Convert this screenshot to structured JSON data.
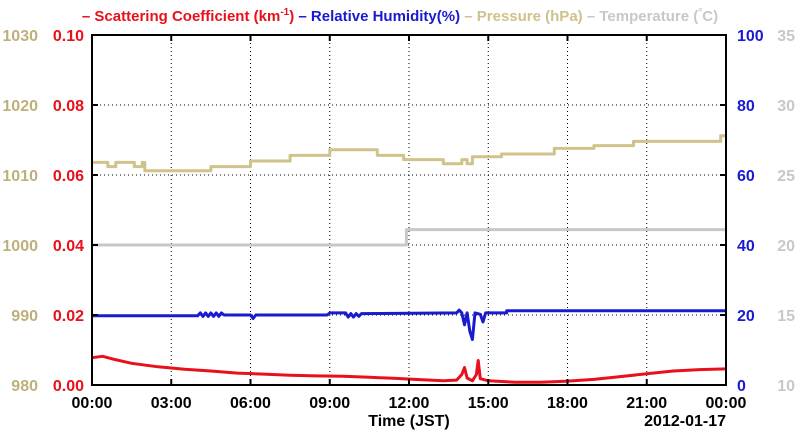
{
  "chart_data": {
    "type": "line",
    "legend": [
      {
        "key": "scatter",
        "prefix": "– ",
        "label": "Scattering Coefficient (km",
        "sup": "-1",
        "suffix": ")",
        "color": "#e8101a"
      },
      {
        "key": "rh",
        "prefix": "– ",
        "label": "Relative Humidity(%)",
        "color": "#1a1ad0"
      },
      {
        "key": "pressure",
        "prefix": "– ",
        "label": "Pressure (hPa)",
        "color": "#cfc28a"
      },
      {
        "key": "temperature",
        "prefix": "– ",
        "label": "Temperature (",
        "sup": "°",
        "suffix": "C)",
        "color": "#c8c8c8"
      }
    ],
    "xlabel": "Time (JST)",
    "date_label": "2012-01-17",
    "x_ticks": [
      "00:00",
      "03:00",
      "06:00",
      "09:00",
      "12:00",
      "15:00",
      "18:00",
      "21:00",
      "00:00"
    ],
    "xlim_hours": [
      0,
      24
    ],
    "axes": {
      "pressure": {
        "ticks": [
          "980",
          "990",
          "1000",
          "1010",
          "1020",
          "1030"
        ],
        "lim": [
          980,
          1030
        ],
        "color": "#bdb07a"
      },
      "scatter": {
        "ticks": [
          "0.00",
          "0.02",
          "0.04",
          "0.06",
          "0.08",
          "0.10"
        ],
        "lim": [
          0,
          0.1
        ],
        "color": "#e8101a"
      },
      "rh": {
        "ticks": [
          "0",
          "20",
          "40",
          "60",
          "80",
          "100"
        ],
        "lim": [
          0,
          100
        ],
        "color": "#1a1ad0"
      },
      "temperature": {
        "ticks": [
          "10",
          "15",
          "20",
          "25",
          "30",
          "35"
        ],
        "lim": [
          10,
          35
        ],
        "color": "#c8c8c8"
      }
    },
    "grid": true,
    "series": [
      {
        "name": "Pressure (hPa)",
        "axis": "pressure",
        "color": "#cfc28a",
        "points": [
          [
            0,
            1011.8
          ],
          [
            0.6,
            1011.8
          ],
          [
            0.6,
            1011.2
          ],
          [
            0.9,
            1011.2
          ],
          [
            0.9,
            1011.8
          ],
          [
            1.6,
            1011.8
          ],
          [
            1.6,
            1011.2
          ],
          [
            1.9,
            1011.2
          ],
          [
            1.9,
            1011.8
          ],
          [
            2.0,
            1011.8
          ],
          [
            2.0,
            1010.6
          ],
          [
            4.5,
            1010.6
          ],
          [
            4.5,
            1011.2
          ],
          [
            6.0,
            1011.2
          ],
          [
            6.0,
            1012.0
          ],
          [
            7.5,
            1012.0
          ],
          [
            7.5,
            1012.8
          ],
          [
            9.0,
            1012.8
          ],
          [
            9.0,
            1013.6
          ],
          [
            10.8,
            1013.6
          ],
          [
            10.8,
            1012.8
          ],
          [
            11.8,
            1012.8
          ],
          [
            11.8,
            1012.2
          ],
          [
            13.3,
            1012.2
          ],
          [
            13.3,
            1011.6
          ],
          [
            14.0,
            1011.6
          ],
          [
            14.0,
            1012.2
          ],
          [
            14.2,
            1012.2
          ],
          [
            14.2,
            1011.6
          ],
          [
            14.4,
            1011.6
          ],
          [
            14.4,
            1012.6
          ],
          [
            15.5,
            1012.6
          ],
          [
            15.5,
            1013.0
          ],
          [
            17.5,
            1013.0
          ],
          [
            17.5,
            1013.8
          ],
          [
            19.0,
            1013.8
          ],
          [
            19.0,
            1014.2
          ],
          [
            20.5,
            1014.2
          ],
          [
            20.5,
            1014.8
          ],
          [
            23.8,
            1014.8
          ],
          [
            23.8,
            1015.6
          ],
          [
            24,
            1015.6
          ]
        ]
      },
      {
        "name": "Temperature (°C)",
        "axis": "temperature",
        "color": "#c8c8c8",
        "points": [
          [
            0,
            20.0
          ],
          [
            11.9,
            20.0
          ],
          [
            11.9,
            21.1
          ],
          [
            24,
            21.1
          ]
        ]
      },
      {
        "name": "Relative Humidity(%)",
        "axis": "rh",
        "color": "#1a1ad0",
        "points": [
          [
            0,
            19.8
          ],
          [
            4.0,
            19.8
          ],
          [
            4.1,
            20.6
          ],
          [
            4.2,
            19.6
          ],
          [
            4.3,
            20.6
          ],
          [
            4.4,
            19.6
          ],
          [
            4.5,
            20.6
          ],
          [
            4.6,
            19.6
          ],
          [
            4.7,
            20.6
          ],
          [
            4.8,
            19.6
          ],
          [
            4.9,
            20.6
          ],
          [
            5.0,
            20.0
          ],
          [
            6.0,
            20.0
          ],
          [
            6.1,
            19.0
          ],
          [
            6.2,
            20.0
          ],
          [
            8.9,
            20.0
          ],
          [
            9.0,
            20.6
          ],
          [
            9.6,
            20.6
          ],
          [
            9.7,
            19.4
          ],
          [
            9.8,
            20.4
          ],
          [
            9.9,
            19.4
          ],
          [
            10.0,
            20.4
          ],
          [
            10.1,
            19.6
          ],
          [
            10.2,
            20.4
          ],
          [
            13.8,
            20.6
          ],
          [
            13.9,
            21.4
          ],
          [
            14.0,
            20.6
          ],
          [
            14.1,
            17.2
          ],
          [
            14.2,
            20.6
          ],
          [
            14.3,
            15.4
          ],
          [
            14.4,
            13.0
          ],
          [
            14.5,
            20.6
          ],
          [
            14.7,
            20.2
          ],
          [
            14.8,
            18.0
          ],
          [
            14.9,
            20.6
          ],
          [
            15.7,
            20.6
          ],
          [
            15.7,
            21.2
          ],
          [
            24,
            21.2
          ]
        ]
      },
      {
        "name": "Scattering Coefficient (km-1)",
        "axis": "scatter",
        "color": "#e8101a",
        "points": [
          [
            0,
            0.0078
          ],
          [
            0.4,
            0.0082
          ],
          [
            0.8,
            0.0074
          ],
          [
            1.5,
            0.0062
          ],
          [
            2.5,
            0.0052
          ],
          [
            3.5,
            0.0045
          ],
          [
            4.5,
            0.004
          ],
          [
            5.5,
            0.0034
          ],
          [
            6.5,
            0.0031
          ],
          [
            7.5,
            0.0028
          ],
          [
            8.5,
            0.0026
          ],
          [
            9.5,
            0.0025
          ],
          [
            10.5,
            0.0022
          ],
          [
            11.5,
            0.0019
          ],
          [
            12.5,
            0.0015
          ],
          [
            13.3,
            0.0012
          ],
          [
            13.8,
            0.0014
          ],
          [
            14.0,
            0.003
          ],
          [
            14.1,
            0.005
          ],
          [
            14.2,
            0.002
          ],
          [
            14.4,
            0.0012
          ],
          [
            14.55,
            0.003
          ],
          [
            14.62,
            0.007
          ],
          [
            14.7,
            0.0018
          ],
          [
            15.0,
            0.0012
          ],
          [
            16.0,
            0.0008
          ],
          [
            17.0,
            0.0008
          ],
          [
            18.0,
            0.0011
          ],
          [
            19.0,
            0.0016
          ],
          [
            20.0,
            0.0024
          ],
          [
            21.0,
            0.0032
          ],
          [
            22.0,
            0.004
          ],
          [
            23.0,
            0.0044
          ],
          [
            24,
            0.0046
          ]
        ]
      }
    ]
  }
}
